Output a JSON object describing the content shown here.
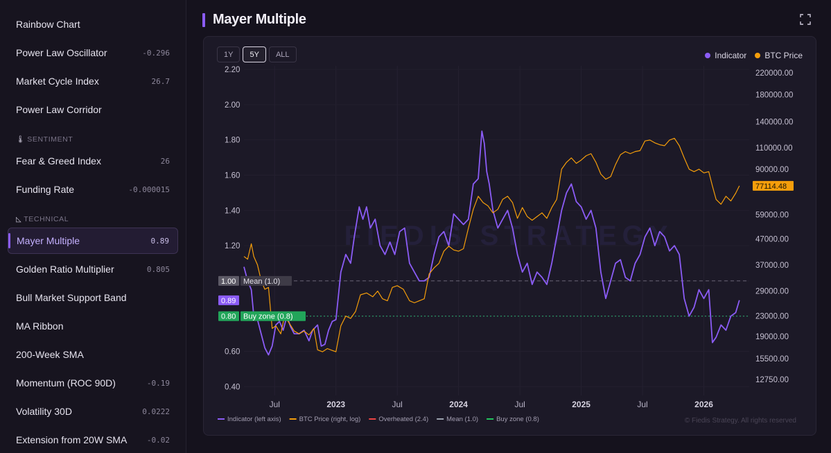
{
  "sidebar": {
    "partial_label": "Rainbow Chart",
    "items": [
      {
        "label": "Rainbow Chart",
        "value": ""
      },
      {
        "label": "Power Law Oscillator",
        "value": "-0.296"
      },
      {
        "label": "Market Cycle Index",
        "value": "26.7"
      },
      {
        "label": "Power Law Corridor",
        "value": ""
      },
      {
        "label": "Fear & Greed Index",
        "value": "26"
      },
      {
        "label": "Funding Rate",
        "value": "-0.000015"
      },
      {
        "label": "Mayer Multiple",
        "value": "0.89"
      },
      {
        "label": "Golden Ratio Multiplier",
        "value": "0.805"
      },
      {
        "label": "Bull Market Support Band",
        "value": ""
      },
      {
        "label": "MA Ribbon",
        "value": ""
      },
      {
        "label": "200-Week SMA",
        "value": ""
      },
      {
        "label": "Momentum (ROC 90D)",
        "value": "-0.19"
      },
      {
        "label": "Volatility 30D",
        "value": "0.0222"
      },
      {
        "label": "Extension from 20W SMA",
        "value": "-0.02"
      }
    ],
    "sections": {
      "sentiment": {
        "label": "SENTIMENT",
        "icon": "thermometer-icon"
      },
      "technical": {
        "label": "TECHNICAL",
        "icon": "triangle-ruler-icon"
      }
    }
  },
  "header": {
    "title": "Mayer Multiple",
    "expand_icon": "expand-icon"
  },
  "range_buttons": [
    "1Y",
    "5Y",
    "ALL"
  ],
  "active_range": "5Y",
  "legend_top": [
    {
      "name": "Indicator",
      "color": "#8b5cf6"
    },
    {
      "name": "BTC Price",
      "color": "#f59e0b"
    }
  ],
  "copyright": "© Fiedis Strategy. All rights reserved",
  "chart_data": {
    "type": "line",
    "x_ticks": [
      "Jul",
      "2023",
      "Jul",
      "2024",
      "Jul",
      "2025",
      "Jul",
      "2026"
    ],
    "x_ticks_bold": [
      false,
      true,
      false,
      true,
      false,
      true,
      false,
      true
    ],
    "left_axis": {
      "ticks": [
        2.2,
        2.0,
        1.8,
        1.6,
        1.4,
        1.2,
        1.0,
        0.8,
        0.6,
        0.4
      ],
      "ylim": [
        0.35,
        2.22
      ]
    },
    "right_axis": {
      "ticks": [
        220000.0,
        180000.0,
        140000.0,
        110000.0,
        90000.0,
        77114.48,
        59000.0,
        47000.0,
        37000.0,
        29000.0,
        23000.0,
        19000.0,
        15500.0,
        12750.0
      ],
      "scale": "log",
      "ylim": [
        11000,
        235000
      ]
    },
    "reference_lines": [
      {
        "name": "Mean",
        "value": 1.0,
        "label": "Mean (1.0)",
        "axis_label": "1.00",
        "color": "#9ca3af"
      },
      {
        "name": "Buy zone",
        "value": 0.8,
        "label": "Buy zone (0.8)",
        "axis_label": "0.80",
        "color": "#22c55e"
      }
    ],
    "current": {
      "indicator_label": "0.89",
      "indicator": 0.89,
      "price_label": "77114.48",
      "price": 77114.48
    },
    "x_range": [
      2022.25,
      2026.37
    ],
    "series": [
      {
        "name": "Indicator (left axis)",
        "axis": "left",
        "color": "#8b5cf6",
        "points": [
          [
            2022.25,
            1.08
          ],
          [
            2022.28,
            1.0
          ],
          [
            2022.31,
            0.95
          ],
          [
            2022.33,
            0.8
          ],
          [
            2022.36,
            0.78
          ],
          [
            2022.39,
            0.7
          ],
          [
            2022.42,
            0.62
          ],
          [
            2022.45,
            0.58
          ],
          [
            2022.48,
            0.63
          ],
          [
            2022.51,
            0.75
          ],
          [
            2022.54,
            0.77
          ],
          [
            2022.57,
            0.72
          ],
          [
            2022.6,
            0.8
          ],
          [
            2022.63,
            0.74
          ],
          [
            2022.66,
            0.7
          ],
          [
            2022.7,
            0.7
          ],
          [
            2022.74,
            0.72
          ],
          [
            2022.78,
            0.66
          ],
          [
            2022.81,
            0.72
          ],
          [
            2022.85,
            0.75
          ],
          [
            2022.88,
            0.63
          ],
          [
            2022.91,
            0.64
          ],
          [
            2022.94,
            0.72
          ],
          [
            2022.97,
            0.77
          ],
          [
            2023.0,
            0.78
          ],
          [
            2023.04,
            1.05
          ],
          [
            2023.08,
            1.15
          ],
          [
            2023.12,
            1.1
          ],
          [
            2023.15,
            1.25
          ],
          [
            2023.19,
            1.42
          ],
          [
            2023.22,
            1.35
          ],
          [
            2023.25,
            1.42
          ],
          [
            2023.28,
            1.3
          ],
          [
            2023.32,
            1.35
          ],
          [
            2023.36,
            1.2
          ],
          [
            2023.4,
            1.15
          ],
          [
            2023.44,
            1.22
          ],
          [
            2023.48,
            1.15
          ],
          [
            2023.52,
            1.28
          ],
          [
            2023.56,
            1.3
          ],
          [
            2023.6,
            1.1
          ],
          [
            2023.64,
            1.05
          ],
          [
            2023.68,
            1.0
          ],
          [
            2023.72,
            1.0
          ],
          [
            2023.76,
            1.02
          ],
          [
            2023.8,
            1.15
          ],
          [
            2023.84,
            1.25
          ],
          [
            2023.88,
            1.28
          ],
          [
            2023.92,
            1.2
          ],
          [
            2023.96,
            1.38
          ],
          [
            2024.0,
            1.35
          ],
          [
            2024.04,
            1.32
          ],
          [
            2024.08,
            1.35
          ],
          [
            2024.12,
            1.55
          ],
          [
            2024.16,
            1.58
          ],
          [
            2024.19,
            1.85
          ],
          [
            2024.21,
            1.78
          ],
          [
            2024.23,
            1.62
          ],
          [
            2024.25,
            1.55
          ],
          [
            2024.28,
            1.4
          ],
          [
            2024.32,
            1.3
          ],
          [
            2024.36,
            1.35
          ],
          [
            2024.4,
            1.4
          ],
          [
            2024.44,
            1.3
          ],
          [
            2024.48,
            1.15
          ],
          [
            2024.52,
            1.05
          ],
          [
            2024.56,
            1.1
          ],
          [
            2024.6,
            0.98
          ],
          [
            2024.64,
            1.05
          ],
          [
            2024.68,
            1.02
          ],
          [
            2024.72,
            0.98
          ],
          [
            2024.76,
            1.1
          ],
          [
            2024.8,
            1.25
          ],
          [
            2024.84,
            1.4
          ],
          [
            2024.88,
            1.5
          ],
          [
            2024.92,
            1.55
          ],
          [
            2024.96,
            1.45
          ],
          [
            2025.0,
            1.42
          ],
          [
            2025.04,
            1.35
          ],
          [
            2025.08,
            1.4
          ],
          [
            2025.12,
            1.3
          ],
          [
            2025.16,
            1.05
          ],
          [
            2025.2,
            0.9
          ],
          [
            2025.24,
            1.0
          ],
          [
            2025.28,
            1.1
          ],
          [
            2025.32,
            1.12
          ],
          [
            2025.36,
            1.02
          ],
          [
            2025.4,
            1.0
          ],
          [
            2025.44,
            1.1
          ],
          [
            2025.48,
            1.15
          ],
          [
            2025.52,
            1.25
          ],
          [
            2025.56,
            1.3
          ],
          [
            2025.6,
            1.2
          ],
          [
            2025.64,
            1.28
          ],
          [
            2025.68,
            1.25
          ],
          [
            2025.72,
            1.17
          ],
          [
            2025.76,
            1.2
          ],
          [
            2025.8,
            1.15
          ],
          [
            2025.84,
            0.9
          ],
          [
            2025.88,
            0.8
          ],
          [
            2025.92,
            0.85
          ],
          [
            2025.96,
            0.95
          ],
          [
            2026.0,
            0.9
          ],
          [
            2026.04,
            0.95
          ],
          [
            2026.07,
            0.65
          ],
          [
            2026.1,
            0.68
          ],
          [
            2026.14,
            0.75
          ],
          [
            2026.18,
            0.72
          ],
          [
            2026.22,
            0.8
          ],
          [
            2026.26,
            0.82
          ],
          [
            2026.29,
            0.89
          ]
        ]
      },
      {
        "name": "BTC Price (right, log)",
        "axis": "right",
        "color": "#f59e0b",
        "points": [
          [
            2022.25,
            40000
          ],
          [
            2022.28,
            39000
          ],
          [
            2022.31,
            45000
          ],
          [
            2022.33,
            40000
          ],
          [
            2022.36,
            37000
          ],
          [
            2022.39,
            32000
          ],
          [
            2022.42,
            29500
          ],
          [
            2022.45,
            30000
          ],
          [
            2022.48,
            20500
          ],
          [
            2022.51,
            21000
          ],
          [
            2022.55,
            19500
          ],
          [
            2022.58,
            23000
          ],
          [
            2022.62,
            21500
          ],
          [
            2022.66,
            20000
          ],
          [
            2022.7,
            19500
          ],
          [
            2022.74,
            20000
          ],
          [
            2022.78,
            19300
          ],
          [
            2022.82,
            20500
          ],
          [
            2022.85,
            16800
          ],
          [
            2022.89,
            16500
          ],
          [
            2022.93,
            17000
          ],
          [
            2022.97,
            16700
          ],
          [
            2023.0,
            16500
          ],
          [
            2023.04,
            21000
          ],
          [
            2023.08,
            23000
          ],
          [
            2023.12,
            22500
          ],
          [
            2023.16,
            24000
          ],
          [
            2023.2,
            28000
          ],
          [
            2023.25,
            28500
          ],
          [
            2023.3,
            27500
          ],
          [
            2023.34,
            29000
          ],
          [
            2023.38,
            27000
          ],
          [
            2023.42,
            26500
          ],
          [
            2023.46,
            30000
          ],
          [
            2023.5,
            30500
          ],
          [
            2023.55,
            29500
          ],
          [
            2023.6,
            26500
          ],
          [
            2023.64,
            26000
          ],
          [
            2023.68,
            26500
          ],
          [
            2023.72,
            27000
          ],
          [
            2023.76,
            34000
          ],
          [
            2023.8,
            36000
          ],
          [
            2023.84,
            37500
          ],
          [
            2023.88,
            42000
          ],
          [
            2023.92,
            44000
          ],
          [
            2023.96,
            42500
          ],
          [
            2024.0,
            42000
          ],
          [
            2024.04,
            43000
          ],
          [
            2024.08,
            52000
          ],
          [
            2024.12,
            62000
          ],
          [
            2024.16,
            70000
          ],
          [
            2024.2,
            66000
          ],
          [
            2024.24,
            64000
          ],
          [
            2024.28,
            60000
          ],
          [
            2024.32,
            62000
          ],
          [
            2024.36,
            68000
          ],
          [
            2024.4,
            70000
          ],
          [
            2024.44,
            66000
          ],
          [
            2024.48,
            57000
          ],
          [
            2024.52,
            63000
          ],
          [
            2024.56,
            58000
          ],
          [
            2024.6,
            56000
          ],
          [
            2024.64,
            58000
          ],
          [
            2024.68,
            60000
          ],
          [
            2024.72,
            57000
          ],
          [
            2024.76,
            63000
          ],
          [
            2024.8,
            68000
          ],
          [
            2024.84,
            90000
          ],
          [
            2024.88,
            96000
          ],
          [
            2024.92,
            100000
          ],
          [
            2024.96,
            95000
          ],
          [
            2025.0,
            98000
          ],
          [
            2025.04,
            102000
          ],
          [
            2025.08,
            104000
          ],
          [
            2025.12,
            96000
          ],
          [
            2025.16,
            86000
          ],
          [
            2025.2,
            82000
          ],
          [
            2025.24,
            84000
          ],
          [
            2025.28,
            94000
          ],
          [
            2025.32,
            103000
          ],
          [
            2025.36,
            106000
          ],
          [
            2025.4,
            104000
          ],
          [
            2025.44,
            106000
          ],
          [
            2025.48,
            107000
          ],
          [
            2025.52,
            117000
          ],
          [
            2025.56,
            118000
          ],
          [
            2025.6,
            115000
          ],
          [
            2025.64,
            113000
          ],
          [
            2025.68,
            112000
          ],
          [
            2025.72,
            118000
          ],
          [
            2025.76,
            120000
          ],
          [
            2025.8,
            112000
          ],
          [
            2025.84,
            100000
          ],
          [
            2025.88,
            90000
          ],
          [
            2025.92,
            88000
          ],
          [
            2025.96,
            90000
          ],
          [
            2026.0,
            87000
          ],
          [
            2026.04,
            88000
          ],
          [
            2026.07,
            77000
          ],
          [
            2026.1,
            68000
          ],
          [
            2026.14,
            65000
          ],
          [
            2026.18,
            70000
          ],
          [
            2026.22,
            67000
          ],
          [
            2026.26,
            72000
          ],
          [
            2026.29,
            77114
          ]
        ]
      }
    ],
    "bottom_legend": [
      {
        "name": "Indicator (left axis)",
        "color": "#8b5cf6"
      },
      {
        "name": "BTC Price (right, log)",
        "color": "#f59e0b"
      },
      {
        "name": "Overheated (2.4)",
        "color": "#ef4444"
      },
      {
        "name": "Mean (1.0)",
        "color": "#9ca3af"
      },
      {
        "name": "Buy zone (0.8)",
        "color": "#22c55e"
      }
    ]
  }
}
